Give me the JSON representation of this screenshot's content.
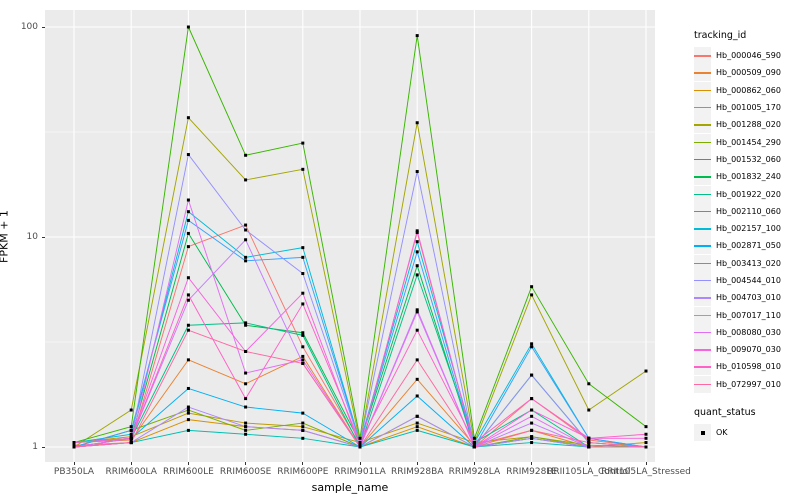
{
  "chart_data": {
    "type": "line",
    "title": "",
    "xlabel": "sample_name",
    "ylabel": "FPKM + 1",
    "y_scale": "log10",
    "y_ticks": [
      1,
      10,
      100
    ],
    "y_minor_ticks": [
      3.162,
      31.62
    ],
    "ylim": [
      0.85,
      120
    ],
    "grid": true,
    "panel_bg": "#EBEBEB",
    "grid_color": "#FFFFFF",
    "marker": "black-square",
    "legend_position": "right",
    "categories": [
      "PB350LA",
      "RRIM600LA",
      "RRIM600LE",
      "RRIM600SE",
      "RRIM600PE",
      "RRIM901LA",
      "RRIM928BA",
      "RRIM928LA",
      "RRIM928LE",
      "RRII105LA_Control",
      "RRII105LA_Stressed"
    ],
    "series": [
      {
        "name": "Hb_000046_590",
        "color": "#F8766D",
        "values": [
          1.02,
          1.05,
          9.0,
          11.4,
          3.0,
          1.02,
          10.5,
          1.0,
          1.7,
          1.08,
          1.0
        ]
      },
      {
        "name": "Hb_000509_090",
        "color": "#EA8331",
        "values": [
          1.05,
          1.08,
          2.6,
          2.0,
          2.7,
          1.0,
          2.1,
          1.02,
          1.2,
          1.0,
          1.0
        ]
      },
      {
        "name": "Hb_000862_060",
        "color": "#D89000",
        "values": [
          1.0,
          1.05,
          1.35,
          1.25,
          1.2,
          1.0,
          1.25,
          1.0,
          1.1,
          1.0,
          1.0
        ]
      },
      {
        "name": "Hb_001005_170",
        "color": "#C09B00",
        "values": [
          1.05,
          1.12,
          1.45,
          1.3,
          1.25,
          1.05,
          1.3,
          1.05,
          1.12,
          1.0,
          1.05
        ]
      },
      {
        "name": "Hb_001288_020",
        "color": "#A3A500",
        "values": [
          1.0,
          1.5,
          37.0,
          18.7,
          21.0,
          1.05,
          35.0,
          1.05,
          5.3,
          1.5,
          2.3
        ]
      },
      {
        "name": "Hb_001454_290",
        "color": "#7CAE00",
        "values": [
          1.0,
          1.2,
          1.5,
          1.2,
          1.3,
          1.0,
          1.4,
          1.0,
          1.12,
          1.02,
          1.0
        ]
      },
      {
        "name": "Hb_001532_060",
        "color": "#39B600",
        "values": [
          1.05,
          1.25,
          100.0,
          24.5,
          28.0,
          1.1,
          91.0,
          1.1,
          5.8,
          2.0,
          1.25
        ]
      },
      {
        "name": "Hb_001832_240",
        "color": "#00BB4E",
        "values": [
          1.0,
          1.1,
          10.4,
          3.8,
          3.5,
          1.05,
          7.3,
          1.0,
          2.2,
          1.05,
          1.0
        ]
      },
      {
        "name": "Hb_001922_020",
        "color": "#00C087",
        "values": [
          1.05,
          1.1,
          3.8,
          3.9,
          3.4,
          1.0,
          6.6,
          1.05,
          1.5,
          1.0,
          1.0
        ]
      },
      {
        "name": "Hb_002110_060",
        "color": "#00C0B2",
        "values": [
          1.0,
          1.05,
          1.2,
          1.15,
          1.1,
          1.0,
          1.2,
          1.0,
          1.05,
          1.0,
          1.0
        ]
      },
      {
        "name": "Hb_002157_100",
        "color": "#00BCD8",
        "values": [
          1.05,
          1.15,
          13.2,
          8.0,
          8.9,
          1.05,
          9.5,
          1.05,
          3.1,
          1.1,
          1.0
        ]
      },
      {
        "name": "Hb_002871_050",
        "color": "#00B0F6",
        "values": [
          1.05,
          1.1,
          1.9,
          1.55,
          1.45,
          1.0,
          1.75,
          1.0,
          1.1,
          1.0,
          1.0
        ]
      },
      {
        "name": "Hb_003413_020",
        "color": "#35A2FF",
        "values": [
          1.0,
          1.2,
          12.0,
          7.7,
          8.0,
          1.05,
          8.5,
          1.0,
          3.0,
          1.1,
          1.0
        ]
      },
      {
        "name": "Hb_004544_010",
        "color": "#9590FF",
        "values": [
          1.0,
          1.1,
          24.7,
          10.8,
          6.7,
          1.05,
          20.5,
          1.0,
          2.2,
          1.05,
          1.0
        ]
      },
      {
        "name": "Hb_004703_010",
        "color": "#AE87FF",
        "values": [
          1.0,
          1.05,
          1.55,
          1.25,
          1.2,
          1.0,
          1.4,
          1.0,
          1.1,
          1.0,
          1.0
        ]
      },
      {
        "name": "Hb_007017_110",
        "color": "#C77CFF",
        "values": [
          1.05,
          1.1,
          5.0,
          9.7,
          2.5,
          1.0,
          4.5,
          1.0,
          1.3,
          1.0,
          1.0
        ]
      },
      {
        "name": "Hb_008080_030",
        "color": "#E36EF6",
        "values": [
          1.0,
          1.05,
          15.0,
          2.25,
          2.6,
          1.0,
          4.4,
          1.0,
          1.4,
          1.0,
          1.0
        ]
      },
      {
        "name": "Hb_009070_030",
        "color": "#F763E0",
        "values": [
          1.0,
          1.1,
          6.4,
          2.85,
          5.4,
          1.0,
          10.7,
          1.0,
          1.5,
          1.1,
          1.1
        ]
      },
      {
        "name": "Hb_010598_010",
        "color": "#FF61C7",
        "values": [
          1.05,
          1.1,
          5.3,
          1.7,
          4.8,
          1.05,
          3.6,
          1.05,
          1.7,
          1.1,
          1.15
        ]
      },
      {
        "name": "Hb_072997_010",
        "color": "#FF68A1",
        "values": [
          1.0,
          1.05,
          3.6,
          2.85,
          2.5,
          1.0,
          2.6,
          1.0,
          1.2,
          1.05,
          1.0
        ]
      }
    ],
    "legend": {
      "color_title": "tracking_id",
      "shape_title": "quant_status",
      "shape_items": [
        {
          "label": "OK",
          "marker": "black-square"
        }
      ]
    }
  }
}
